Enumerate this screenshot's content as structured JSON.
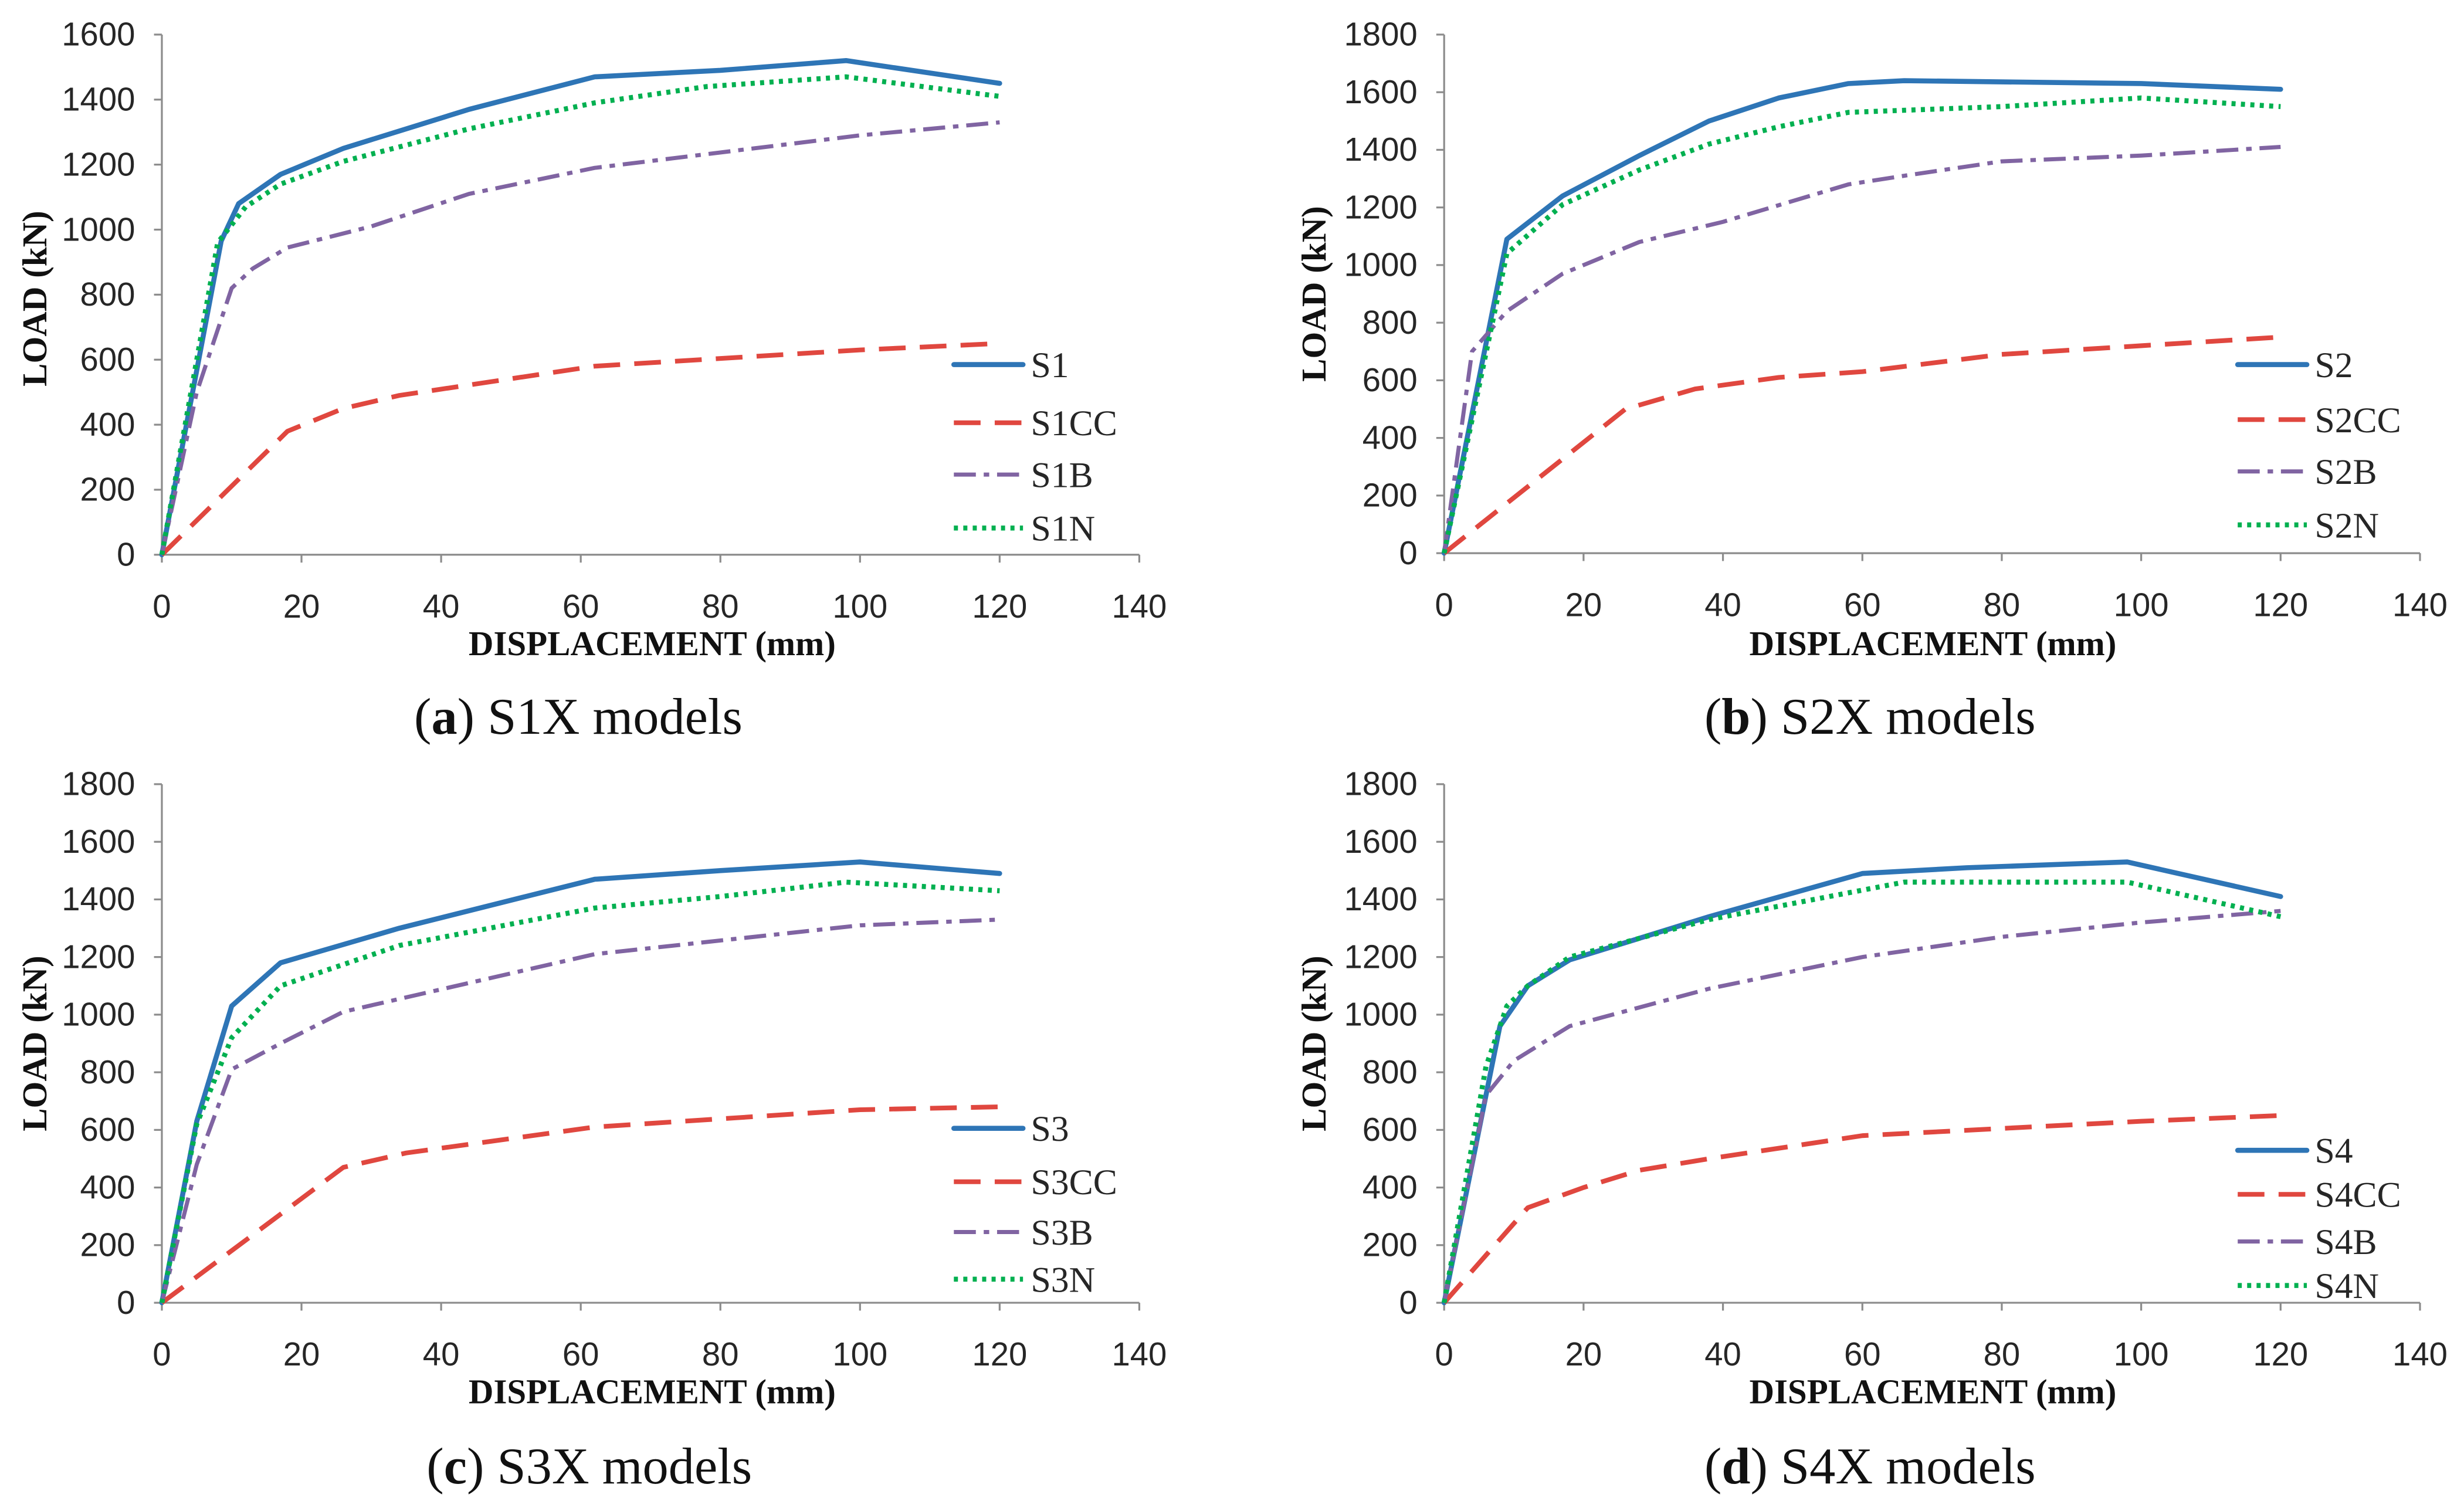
{
  "chart_data": [
    {
      "type": "line",
      "title": "(a) S1X models",
      "xlabel": "DISPLACEMENT (mm)",
      "ylabel": "LOAD (kN)",
      "xlim": [
        0,
        140
      ],
      "ylim": [
        0,
        1600
      ],
      "xticks": [
        0,
        20,
        40,
        60,
        80,
        100,
        120,
        140
      ],
      "yticks": [
        0,
        200,
        400,
        600,
        800,
        1000,
        1200,
        1400,
        1600
      ],
      "grid": false,
      "legend": "right",
      "series": [
        {
          "name": "S1",
          "color": "#2e75b6",
          "style": "solid",
          "x": [
            0,
            8.5,
            11,
            17,
            26,
            44,
            62,
            80,
            98,
            120
          ],
          "y": [
            0,
            965,
            1080,
            1170,
            1250,
            1370,
            1470,
            1490,
            1520,
            1450
          ]
        },
        {
          "name": "S1CC",
          "color": "#e0473f",
          "style": "dashed",
          "x": [
            0,
            18,
            26,
            34,
            62,
            100,
            120
          ],
          "y": [
            0,
            380,
            450,
            490,
            580,
            630,
            650
          ]
        },
        {
          "name": "S1B",
          "color": "#8064a2",
          "style": "dash-dot",
          "x": [
            0,
            5,
            10,
            13,
            18,
            30,
            44,
            62,
            100,
            120
          ],
          "y": [
            0,
            500,
            820,
            880,
            945,
            1010,
            1110,
            1190,
            1290,
            1330
          ]
        },
        {
          "name": "S1N",
          "color": "#00b050",
          "style": "dotted",
          "x": [
            0,
            8,
            12,
            17,
            26,
            44,
            62,
            78,
            98,
            120
          ],
          "y": [
            0,
            960,
            1070,
            1140,
            1210,
            1310,
            1390,
            1440,
            1470,
            1410
          ]
        }
      ]
    },
    {
      "type": "line",
      "title": "(b) S2X models",
      "xlabel": "DISPLACEMENT (mm)",
      "ylabel": "LOAD (kN)",
      "xlim": [
        0,
        140
      ],
      "ylim": [
        0,
        1800
      ],
      "xticks": [
        0,
        20,
        40,
        60,
        80,
        100,
        120,
        140
      ],
      "yticks": [
        0,
        200,
        400,
        600,
        800,
        1000,
        1200,
        1400,
        1600,
        1800
      ],
      "grid": false,
      "legend": "right",
      "series": [
        {
          "name": "S2",
          "color": "#2e75b6",
          "style": "solid",
          "x": [
            0,
            9,
            17,
            28,
            38,
            48,
            58,
            66,
            100,
            120
          ],
          "y": [
            0,
            1090,
            1240,
            1380,
            1500,
            1580,
            1630,
            1640,
            1630,
            1610
          ]
        },
        {
          "name": "S2CC",
          "color": "#e0473f",
          "style": "dashed",
          "x": [
            0,
            26,
            36,
            48,
            60,
            80,
            100,
            120
          ],
          "y": [
            0,
            500,
            570,
            610,
            630,
            690,
            720,
            750
          ]
        },
        {
          "name": "S2B",
          "color": "#8064a2",
          "style": "dash-dot",
          "x": [
            0,
            4,
            9,
            17,
            28,
            40,
            58,
            66,
            80,
            100,
            120
          ],
          "y": [
            0,
            700,
            840,
            970,
            1080,
            1150,
            1280,
            1310,
            1360,
            1380,
            1410
          ]
        },
        {
          "name": "S2N",
          "color": "#00b050",
          "style": "dotted",
          "x": [
            0,
            9,
            17,
            28,
            38,
            48,
            58,
            80,
            100,
            120
          ],
          "y": [
            0,
            1040,
            1210,
            1330,
            1420,
            1480,
            1530,
            1550,
            1580,
            1550
          ]
        }
      ]
    },
    {
      "type": "line",
      "title": "(c) S3X models",
      "xlabel": "DISPLACEMENT (mm)",
      "ylabel": "LOAD (kN)",
      "xlim": [
        0,
        140
      ],
      "ylim": [
        0,
        1800
      ],
      "xticks": [
        0,
        20,
        40,
        60,
        80,
        100,
        120,
        140
      ],
      "yticks": [
        0,
        200,
        400,
        600,
        800,
        1000,
        1200,
        1400,
        1600,
        1800
      ],
      "grid": false,
      "legend": "right",
      "series": [
        {
          "name": "S3",
          "color": "#2e75b6",
          "style": "solid",
          "x": [
            0,
            5,
            10,
            17,
            34,
            62,
            80,
            100,
            120
          ],
          "y": [
            0,
            630,
            1030,
            1180,
            1300,
            1470,
            1500,
            1530,
            1490
          ]
        },
        {
          "name": "S3CC",
          "color": "#e0473f",
          "style": "dashed",
          "x": [
            0,
            26,
            35,
            62,
            100,
            120
          ],
          "y": [
            0,
            470,
            520,
            610,
            670,
            680
          ]
        },
        {
          "name": "S3B",
          "color": "#8064a2",
          "style": "dash-dot",
          "x": [
            0,
            5,
            10,
            17,
            26,
            44,
            62,
            100,
            120
          ],
          "y": [
            0,
            480,
            810,
            900,
            1010,
            1110,
            1210,
            1310,
            1330
          ]
        },
        {
          "name": "S3N",
          "color": "#00b050",
          "style": "dotted",
          "x": [
            0,
            5,
            10,
            17,
            34,
            62,
            80,
            98,
            120
          ],
          "y": [
            0,
            620,
            920,
            1100,
            1240,
            1370,
            1410,
            1460,
            1430
          ]
        }
      ]
    },
    {
      "type": "line",
      "title": "(d) S4X models",
      "xlabel": "DISPLACEMENT (mm)",
      "ylabel": "LOAD (kN)",
      "xlim": [
        0,
        140
      ],
      "ylim": [
        0,
        1800
      ],
      "xticks": [
        0,
        20,
        40,
        60,
        80,
        100,
        120,
        140
      ],
      "yticks": [
        0,
        200,
        400,
        600,
        800,
        1000,
        1200,
        1400,
        1600,
        1800
      ],
      "grid": false,
      "legend": "right",
      "series": [
        {
          "name": "S4",
          "color": "#2e75b6",
          "style": "solid",
          "x": [
            0,
            8,
            12,
            18,
            38,
            60,
            75,
            98,
            120
          ],
          "y": [
            0,
            960,
            1100,
            1190,
            1340,
            1490,
            1510,
            1530,
            1410
          ]
        },
        {
          "name": "S4CC",
          "color": "#e0473f",
          "style": "dashed",
          "x": [
            0,
            12,
            20,
            28,
            38,
            60,
            100,
            120
          ],
          "y": [
            0,
            330,
            400,
            460,
            500,
            580,
            630,
            650
          ]
        },
        {
          "name": "S4B",
          "color": "#8064a2",
          "style": "dash-dot",
          "x": [
            0,
            6,
            10,
            18,
            38,
            60,
            80,
            100,
            120
          ],
          "y": [
            0,
            720,
            840,
            960,
            1090,
            1200,
            1270,
            1320,
            1360
          ]
        },
        {
          "name": "S4N",
          "color": "#00b050",
          "style": "dotted",
          "x": [
            0,
            6,
            9,
            12,
            18,
            38,
            66,
            98,
            120
          ],
          "y": [
            0,
            820,
            1030,
            1100,
            1200,
            1330,
            1460,
            1460,
            1340
          ]
        }
      ]
    }
  ]
}
